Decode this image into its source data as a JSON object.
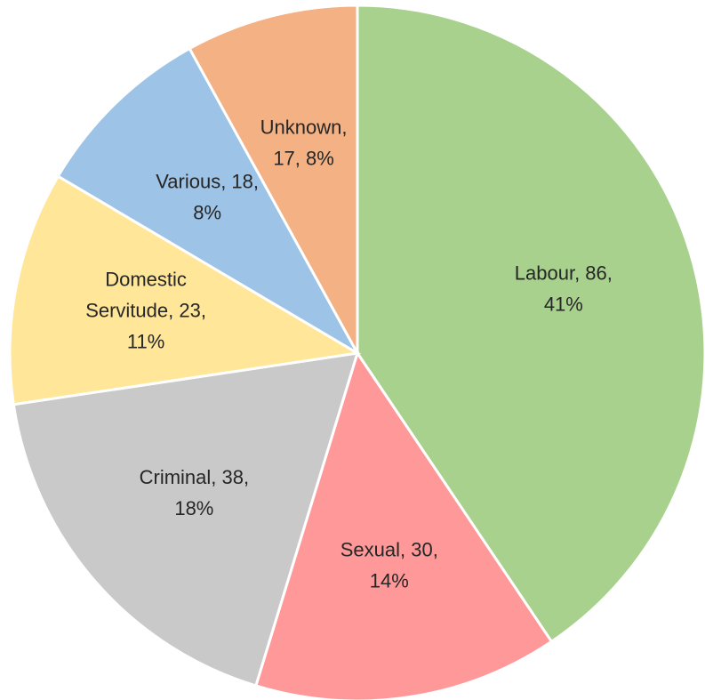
{
  "chart_data": {
    "type": "pie",
    "categories": [
      "Labour",
      "Sexual",
      "Criminal",
      "Domestic Servitude",
      "Various",
      "Unknown"
    ],
    "values": [
      86,
      30,
      38,
      23,
      18,
      17
    ],
    "value_labels": [
      [
        "Labour, 86,",
        "41%"
      ],
      [
        "Sexual, 30,",
        "14%"
      ],
      [
        "Criminal, 38,",
        "18%"
      ],
      [
        "Domestic",
        "Servitude, 23,",
        "11%"
      ],
      [
        "Various, 18,",
        "8%"
      ],
      [
        "Unknown,",
        "17, 8%"
      ]
    ],
    "colors": [
      "#a9d18e",
      "#ff9999",
      "#c9c9c9",
      "#ffe699",
      "#9dc3e6",
      "#f4b183"
    ]
  }
}
